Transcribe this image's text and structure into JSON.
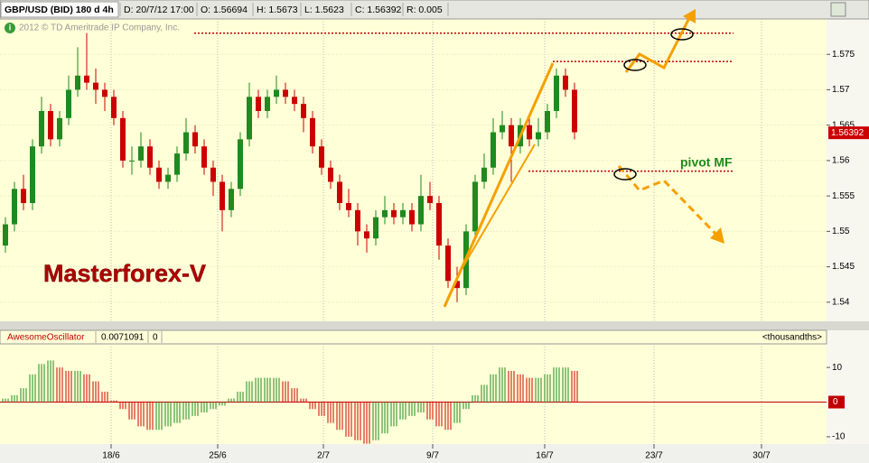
{
  "header": {
    "symbol": "GBP/USD (BID) 180 d 4h",
    "date": "D: 20/7/12 17:00",
    "open": "O: 1.56694",
    "high": "H: 1.5673",
    "low": "L: 1.5623",
    "close": "C: 1.56392",
    "range": "R: 0.005",
    "copyright": "2012 © TD Ameritrade IP Company, Inc."
  },
  "chart_data": [
    {
      "type": "candlestick",
      "open": [
        1.548,
        1.551,
        1.556,
        1.554,
        1.562,
        1.567,
        1.563,
        1.566,
        1.57,
        1.572,
        1.571,
        1.57,
        1.569,
        1.566,
        1.56,
        1.56,
        1.562,
        1.559,
        1.557,
        1.558,
        1.561,
        1.564,
        1.562,
        1.559,
        1.557,
        1.553,
        1.556,
        1.563,
        1.569,
        1.567,
        1.569,
        1.57,
        1.569,
        1.568,
        1.566,
        1.562,
        1.559,
        1.557,
        1.554,
        1.553,
        1.55,
        1.549,
        1.552,
        1.553,
        1.552,
        1.553,
        1.551,
        1.555,
        1.554,
        1.548,
        1.543,
        1.542,
        1.55,
        1.557,
        1.559,
        1.564,
        1.565,
        1.562,
        1.565,
        1.563,
        1.564,
        1.567,
        1.572,
        1.57
      ],
      "high": [
        1.552,
        1.557,
        1.558,
        1.563,
        1.569,
        1.568,
        1.567,
        1.572,
        1.576,
        1.578,
        1.573,
        1.571,
        1.57,
        1.567,
        1.562,
        1.564,
        1.563,
        1.56,
        1.559,
        1.562,
        1.566,
        1.565,
        1.563,
        1.56,
        1.558,
        1.557,
        1.564,
        1.571,
        1.57,
        1.57,
        1.572,
        1.571,
        1.57,
        1.569,
        1.567,
        1.563,
        1.56,
        1.558,
        1.556,
        1.554,
        1.551,
        1.553,
        1.555,
        1.554,
        1.554,
        1.554,
        1.558,
        1.557,
        1.555,
        1.549,
        1.545,
        1.551,
        1.558,
        1.561,
        1.566,
        1.567,
        1.566,
        1.566,
        1.566,
        1.566,
        1.568,
        1.573,
        1.573,
        1.571
      ],
      "low": [
        1.547,
        1.55,
        1.553,
        1.553,
        1.561,
        1.562,
        1.562,
        1.565,
        1.569,
        1.57,
        1.568,
        1.567,
        1.565,
        1.559,
        1.558,
        1.559,
        1.558,
        1.556,
        1.556,
        1.557,
        1.56,
        1.561,
        1.558,
        1.555,
        1.55,
        1.552,
        1.555,
        1.562,
        1.566,
        1.566,
        1.568,
        1.568,
        1.567,
        1.564,
        1.561,
        1.558,
        1.556,
        1.553,
        1.552,
        1.548,
        1.547,
        1.548,
        1.551,
        1.551,
        1.551,
        1.55,
        1.55,
        1.553,
        1.546,
        1.542,
        1.54,
        1.541,
        1.549,
        1.556,
        1.558,
        1.563,
        1.557,
        1.561,
        1.562,
        1.562,
        1.563,
        1.566,
        1.569,
        1.563
      ],
      "close": [
        1.551,
        1.556,
        1.554,
        1.562,
        1.567,
        1.563,
        1.566,
        1.57,
        1.572,
        1.571,
        1.57,
        1.569,
        1.566,
        1.56,
        1.56,
        1.562,
        1.559,
        1.557,
        1.558,
        1.561,
        1.564,
        1.562,
        1.559,
        1.557,
        1.553,
        1.556,
        1.563,
        1.569,
        1.567,
        1.569,
        1.57,
        1.569,
        1.568,
        1.566,
        1.562,
        1.559,
        1.557,
        1.554,
        1.553,
        1.55,
        1.549,
        1.552,
        1.553,
        1.552,
        1.553,
        1.551,
        1.555,
        1.554,
        1.548,
        1.543,
        1.542,
        1.55,
        1.557,
        1.559,
        1.564,
        1.565,
        1.562,
        1.565,
        1.563,
        1.564,
        1.567,
        1.572,
        1.57,
        1.564
      ],
      "up_color": "#1f8a1f",
      "down_color": "#cc0000",
      "xlim": [
        -0.6,
        90.9
      ],
      "xticks": [
        {
          "value": 11.7,
          "label": "18/6"
        },
        {
          "value": 23.5,
          "label": "25/6"
        },
        {
          "value": 35.2,
          "label": "2/7"
        },
        {
          "value": 47.3,
          "label": "9/7"
        },
        {
          "value": 59.7,
          "label": "16/7"
        },
        {
          "value": 71.8,
          "label": "23/7"
        },
        {
          "value": 83.7,
          "label": "30/7"
        }
      ],
      "ylim": [
        1.5373,
        1.58
      ],
      "yticks": [
        1.54,
        1.545,
        1.55,
        1.555,
        1.56,
        1.565,
        1.57,
        1.575
      ],
      "grid": true,
      "levels": [
        1.578,
        1.574,
        1.5585
      ],
      "level_color": "#c00000",
      "last_price": {
        "value": 1.56392,
        "label": "1.56392"
      },
      "annotations": [
        "Masterforex-V",
        "pivot MF"
      ]
    },
    {
      "type": "histogram",
      "title": "AwesomeOscillator",
      "current": "0.0071091",
      "param": "0",
      "units": "<thousandths>",
      "values": [
        1,
        2,
        4,
        8,
        11,
        12,
        10,
        9,
        9,
        8,
        6,
        3,
        0.5,
        -2,
        -5,
        -7,
        -8,
        -8,
        -7,
        -6,
        -5,
        -4,
        -3,
        -2,
        -1,
        1,
        3,
        6,
        7,
        7,
        7,
        6,
        4,
        1,
        -2,
        -4,
        -6,
        -8,
        -10,
        -11,
        -12,
        -11,
        -9,
        -7,
        -5,
        -4,
        -3,
        -5,
        -7,
        -8,
        -6,
        -2,
        2,
        5,
        8,
        10,
        9,
        8,
        7,
        7,
        8,
        10,
        10,
        9
      ],
      "up_color": "#1f8a1f",
      "down_color": "#cc0000",
      "ylim": [
        -12.1,
        16.8
      ],
      "yticks": [
        -10,
        0,
        10
      ],
      "zero_color": "#c00000"
    }
  ]
}
